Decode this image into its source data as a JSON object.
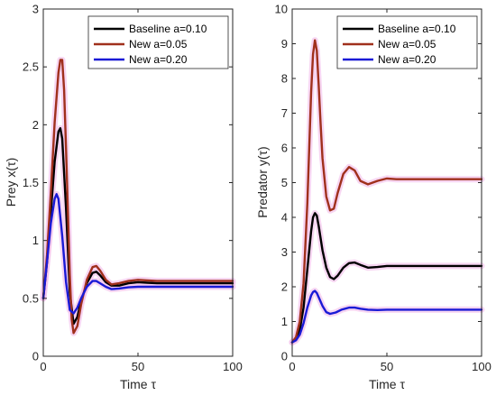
{
  "chart_data": [
    {
      "type": "line",
      "title": "",
      "xlabel": "Time τ",
      "ylabel": "Prey x(τ)",
      "xlim": [
        0,
        100
      ],
      "ylim": [
        0,
        3
      ],
      "xticks": [
        "0",
        "50",
        "100"
      ],
      "yticks": [
        "0",
        "0.5",
        "1",
        "1.5",
        "2",
        "2.5",
        "3"
      ],
      "legend_position": "top-right",
      "series": [
        {
          "name": "Baseline a=0.10",
          "color": "#000000",
          "x": [
            0,
            2,
            4,
            6,
            8,
            9,
            10,
            12,
            14,
            16,
            18,
            20,
            23,
            26,
            28,
            30,
            33,
            36,
            40,
            45,
            50,
            55,
            60,
            70,
            80,
            90,
            100
          ],
          "y": [
            0.5,
            0.82,
            1.25,
            1.68,
            1.94,
            1.97,
            1.88,
            1.28,
            0.55,
            0.28,
            0.34,
            0.48,
            0.63,
            0.72,
            0.73,
            0.7,
            0.64,
            0.61,
            0.61,
            0.63,
            0.64,
            0.635,
            0.63,
            0.63,
            0.63,
            0.63,
            0.63
          ]
        },
        {
          "name": "New a=0.05",
          "color": "#a0301c",
          "x": [
            0,
            2,
            4,
            6,
            8,
            9,
            10,
            11,
            12,
            14,
            15,
            16,
            18,
            20,
            23,
            26,
            28,
            30,
            33,
            36,
            40,
            45,
            50,
            55,
            60,
            70,
            80,
            90,
            100
          ],
          "y": [
            0.5,
            0.88,
            1.42,
            2.02,
            2.45,
            2.56,
            2.56,
            2.3,
            1.8,
            0.7,
            0.32,
            0.2,
            0.26,
            0.45,
            0.66,
            0.77,
            0.78,
            0.74,
            0.66,
            0.62,
            0.63,
            0.65,
            0.66,
            0.655,
            0.65,
            0.65,
            0.65,
            0.65,
            0.65
          ]
        },
        {
          "name": "New a=0.20",
          "color": "#1a1ad6",
          "x": [
            0,
            2,
            4,
            6,
            7,
            8,
            10,
            12,
            14,
            16,
            18,
            20,
            23,
            26,
            28,
            30,
            33,
            36,
            40,
            45,
            50,
            55,
            60,
            70,
            80,
            90,
            100
          ],
          "y": [
            0.5,
            0.82,
            1.15,
            1.36,
            1.4,
            1.36,
            1.04,
            0.64,
            0.4,
            0.37,
            0.42,
            0.5,
            0.6,
            0.65,
            0.65,
            0.63,
            0.6,
            0.58,
            0.585,
            0.595,
            0.6,
            0.6,
            0.6,
            0.6,
            0.6,
            0.6,
            0.6
          ]
        }
      ]
    },
    {
      "type": "line",
      "title": "",
      "xlabel": "Time τ",
      "ylabel": "Predator y(τ)",
      "xlim": [
        0,
        100
      ],
      "ylim": [
        0,
        10
      ],
      "xticks": [
        "0",
        "50",
        "100"
      ],
      "yticks": [
        "0",
        "1",
        "2",
        "3",
        "4",
        "5",
        "6",
        "7",
        "8",
        "9",
        "10"
      ],
      "legend_position": "top-right",
      "series": [
        {
          "name": "Baseline a=0.10",
          "color": "#000000",
          "x": [
            0,
            2,
            4,
            6,
            8,
            10,
            11,
            12,
            13,
            14,
            16,
            18,
            20,
            22,
            24,
            27,
            30,
            33,
            36,
            40,
            45,
            50,
            55,
            60,
            70,
            80,
            90,
            100
          ],
          "y": [
            0.4,
            0.48,
            0.75,
            1.4,
            2.5,
            3.6,
            4.0,
            4.12,
            4.05,
            3.75,
            3.05,
            2.55,
            2.28,
            2.22,
            2.32,
            2.55,
            2.68,
            2.7,
            2.63,
            2.55,
            2.57,
            2.6,
            2.6,
            2.6,
            2.6,
            2.6,
            2.6,
            2.6
          ]
        },
        {
          "name": "New a=0.05",
          "color": "#a0301c",
          "x": [
            0,
            2,
            4,
            6,
            8,
            9,
            10,
            11,
            12,
            13,
            14,
            15,
            16,
            18,
            20,
            22,
            24,
            27,
            30,
            33,
            36,
            40,
            45,
            50,
            55,
            60,
            70,
            80,
            90,
            100
          ],
          "y": [
            0.4,
            0.55,
            1.0,
            2.1,
            4.4,
            6.0,
            7.6,
            8.7,
            9.1,
            8.8,
            7.8,
            6.7,
            5.7,
            4.6,
            4.2,
            4.25,
            4.7,
            5.25,
            5.45,
            5.35,
            5.05,
            4.95,
            5.05,
            5.12,
            5.1,
            5.1,
            5.1,
            5.1,
            5.1,
            5.1
          ]
        },
        {
          "name": "New a=0.20",
          "color": "#1a1ad6",
          "x": [
            0,
            2,
            4,
            6,
            8,
            10,
            11,
            12,
            13,
            14,
            16,
            18,
            20,
            23,
            26,
            30,
            33,
            36,
            40,
            45,
            50,
            55,
            60,
            70,
            80,
            90,
            100
          ],
          "y": [
            0.4,
            0.46,
            0.62,
            0.95,
            1.4,
            1.75,
            1.85,
            1.88,
            1.82,
            1.7,
            1.45,
            1.27,
            1.22,
            1.26,
            1.34,
            1.4,
            1.4,
            1.37,
            1.34,
            1.33,
            1.34,
            1.34,
            1.34,
            1.34,
            1.34,
            1.34,
            1.34
          ]
        }
      ]
    }
  ]
}
